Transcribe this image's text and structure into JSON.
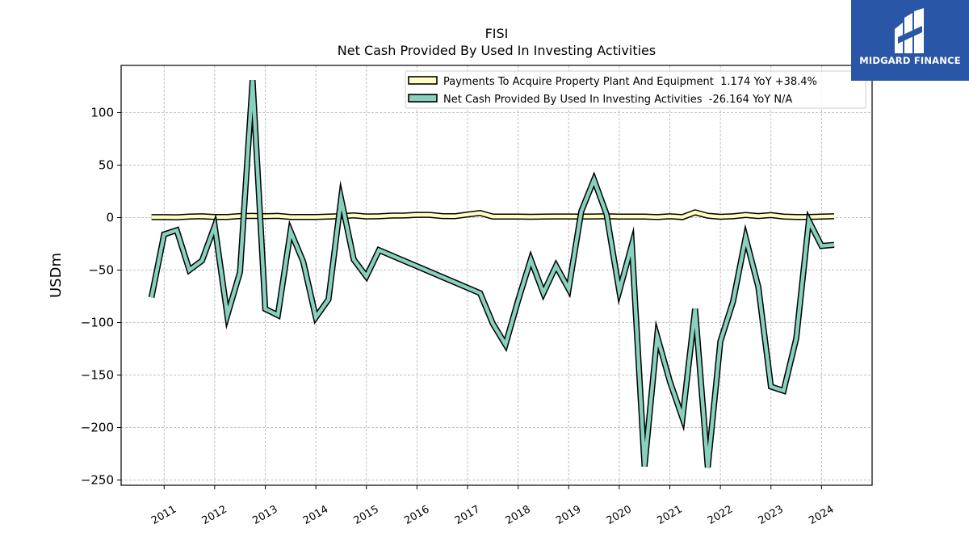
{
  "logo": {
    "text": "MIDGARD FINANCE",
    "color": "#2a56a8"
  },
  "chart_data": {
    "type": "line",
    "title": "FISI",
    "subtitle": "Net Cash Provided By Used In Investing Activities",
    "xlabel": "",
    "ylabel": "USDm",
    "ylim": [
      -255,
      145
    ],
    "xlim": [
      2010.15,
      2025.0
    ],
    "yticks": [
      100,
      50,
      0,
      -50,
      -100,
      -150,
      -200,
      -250
    ],
    "ytick_labels": [
      "100",
      "50",
      "0",
      "−50",
      "−100",
      "−150",
      "−200",
      "−250"
    ],
    "xticks": [
      2011,
      2012,
      2013,
      2014,
      2015,
      2016,
      2017,
      2018,
      2019,
      2020,
      2021,
      2022,
      2023,
      2024
    ],
    "xtick_labels": [
      "2011",
      "2012",
      "2013",
      "2014",
      "2015",
      "2016",
      "2017",
      "2018",
      "2019",
      "2020",
      "2021",
      "2022",
      "2023",
      "2024"
    ],
    "grid": true,
    "legend_position": "top-right",
    "series": [
      {
        "name": "Payments To Acquire Property Plant And Equipment  1.174 YoY +38.4%",
        "color": "#ffffbf",
        "x": [
          2010.75,
          2011.0,
          2011.25,
          2011.5,
          2011.75,
          2012.0,
          2012.25,
          2012.5,
          2012.75,
          2013.0,
          2013.25,
          2013.5,
          2013.75,
          2014.0,
          2014.25,
          2014.5,
          2014.75,
          2015.0,
          2015.25,
          2015.5,
          2015.75,
          2016.0,
          2016.25,
          2016.5,
          2016.75,
          2017.0,
          2017.25,
          2017.5,
          2017.75,
          2018.0,
          2018.25,
          2018.5,
          2018.75,
          2019.0,
          2019.25,
          2019.5,
          2019.75,
          2020.0,
          2020.25,
          2020.5,
          2020.75,
          2021.0,
          2021.25,
          2021.5,
          2021.75,
          2022.0,
          2022.25,
          2022.5,
          2022.75,
          2023.0,
          2023.25,
          2023.5,
          2023.75,
          2024.0,
          2024.25
        ],
        "values": [
          0.5,
          0.5,
          0.3,
          1.0,
          1.2,
          0.6,
          0.6,
          1.5,
          1.6,
          1.3,
          1.6,
          0.6,
          0.6,
          0.6,
          0.9,
          1.3,
          2.1,
          1.1,
          1.2,
          1.9,
          2.0,
          2.6,
          2.6,
          1.5,
          1.3,
          2.9,
          4.4,
          1.0,
          0.9,
          1.0,
          0.8,
          1.0,
          1.1,
          1.1,
          1.0,
          1.1,
          1.2,
          1.0,
          1.0,
          1.0,
          0.5,
          1.2,
          0.5,
          5.0,
          1.8,
          0.8,
          1.2,
          2.5,
          1.5,
          2.4,
          1.0,
          0.6,
          0.6,
          0.9,
          1.2
        ]
      },
      {
        "name": "Net Cash Provided By Used In Investing Activities  -26.164 YoY N/A",
        "color": "#88d1bf",
        "x": [
          2010.75,
          2011.0,
          2011.25,
          2011.5,
          2011.75,
          2012.0,
          2012.25,
          2012.5,
          2012.75,
          2013.0,
          2013.25,
          2013.5,
          2013.75,
          2014.0,
          2014.25,
          2014.5,
          2014.75,
          2015.0,
          2015.25,
          2017.25,
          2017.5,
          2017.75,
          2018.0,
          2018.25,
          2018.5,
          2018.75,
          2019.0,
          2019.25,
          2019.5,
          2019.75,
          2020.0,
          2020.25,
          2020.5,
          2020.75,
          2021.0,
          2021.25,
          2021.5,
          2021.75,
          2022.0,
          2022.25,
          2022.5,
          2022.75,
          2023.0,
          2023.25,
          2023.5,
          2023.75,
          2024.0,
          2024.25
        ],
        "values": [
          -76,
          -16,
          -12,
          -50,
          -41,
          -8,
          -93,
          -52,
          131,
          -87,
          -93,
          -13,
          -42,
          -95,
          -78,
          18,
          -40,
          -56,
          -31,
          -72,
          -101,
          -121,
          -79,
          -40,
          -72,
          -46,
          -68,
          6,
          36,
          3,
          -70,
          -26,
          -237,
          -113,
          -156,
          -191,
          -87,
          -238,
          -118,
          -80,
          -19,
          -66,
          -161,
          -165,
          -115,
          -3,
          -27,
          -26
        ]
      }
    ]
  }
}
